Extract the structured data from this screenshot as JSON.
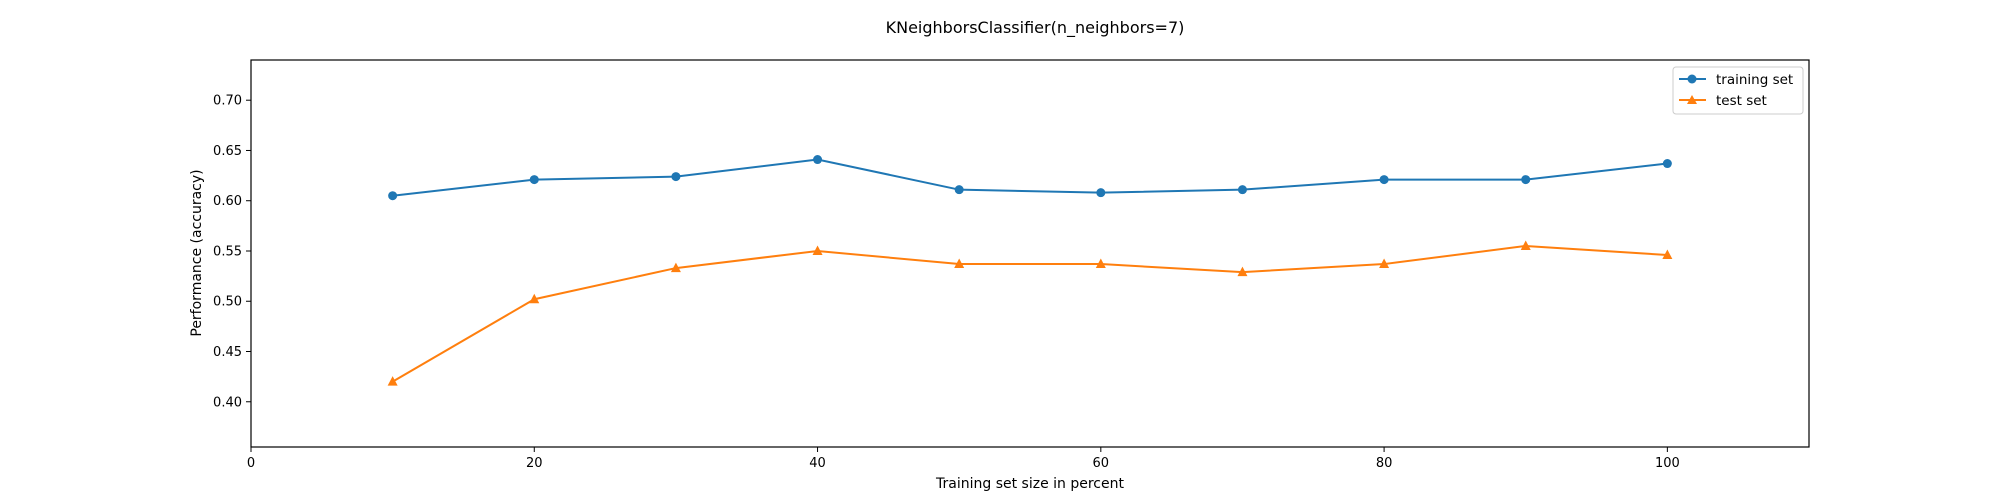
{
  "chart_data": {
    "type": "line",
    "title": "KNeighborsClassifier(n_neighbors=7)",
    "xlabel": "Training set size in percent",
    "ylabel": "Performance (accuracy)",
    "xlim": [
      0,
      110
    ],
    "ylim": [
      0.355,
      0.74
    ],
    "xticks": [
      0,
      20,
      40,
      60,
      80,
      100
    ],
    "yticks": [
      0.4,
      0.45,
      0.5,
      0.55,
      0.6,
      0.65,
      0.7
    ],
    "x": [
      10,
      20,
      30,
      40,
      50,
      60,
      70,
      80,
      90,
      100
    ],
    "series": [
      {
        "name": "training set",
        "color": "#1f77b4",
        "marker": "circle",
        "values": [
          0.605,
          0.621,
          0.624,
          0.641,
          0.611,
          0.608,
          0.611,
          0.621,
          0.621,
          0.637
        ]
      },
      {
        "name": "test set",
        "color": "#ff7f0e",
        "marker": "triangle",
        "values": [
          0.42,
          0.502,
          0.533,
          0.55,
          0.537,
          0.537,
          0.529,
          0.537,
          0.555,
          0.546
        ]
      }
    ],
    "grid": false,
    "legend": "top-right"
  }
}
